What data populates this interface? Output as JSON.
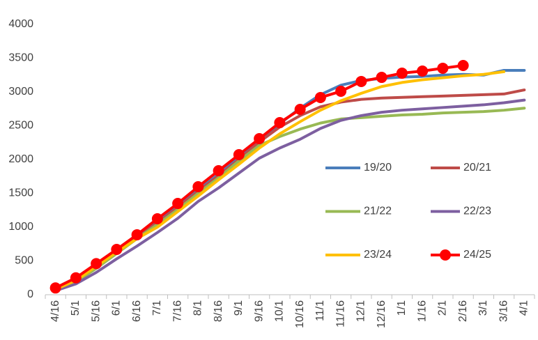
{
  "chart_data": {
    "type": "line",
    "categories": [
      "4/16",
      "5/1",
      "5/16",
      "6/1",
      "6/16",
      "7/1",
      "7/16",
      "8/1",
      "8/16",
      "9/1",
      "9/16",
      "10/1",
      "10/16",
      "11/1",
      "11/16",
      "12/1",
      "12/16",
      "1/1",
      "1/16",
      "2/1",
      "2/16",
      "3/1",
      "3/16",
      "4/1"
    ],
    "series": [
      {
        "name": "19/20",
        "color": "#4a7ebb",
        "values": [
          80,
          220,
          420,
          640,
          870,
          1080,
          1300,
          1550,
          1780,
          2030,
          2290,
          2530,
          2760,
          2960,
          3100,
          3170,
          3200,
          3220,
          3230,
          3250,
          3260,
          3250,
          3320,
          3320
        ]
      },
      {
        "name": "20/21",
        "color": "#be4b48",
        "values": [
          80,
          200,
          400,
          620,
          850,
          1060,
          1290,
          1530,
          1760,
          2000,
          2260,
          2480,
          2650,
          2780,
          2850,
          2890,
          2910,
          2920,
          2930,
          2940,
          2950,
          2960,
          2970,
          3030
        ]
      },
      {
        "name": "21/22",
        "color": "#98b954",
        "values": [
          80,
          190,
          390,
          610,
          830,
          1040,
          1260,
          1500,
          1730,
          1980,
          2210,
          2340,
          2450,
          2540,
          2600,
          2620,
          2640,
          2660,
          2670,
          2690,
          2700,
          2710,
          2730,
          2760
        ]
      },
      {
        "name": "22/23",
        "color": "#7d5fa0",
        "values": [
          60,
          160,
          330,
          530,
          720,
          920,
          1130,
          1380,
          1580,
          1800,
          2020,
          2170,
          2300,
          2460,
          2580,
          2650,
          2700,
          2730,
          2750,
          2770,
          2790,
          2810,
          2840,
          2880
        ]
      },
      {
        "name": "23/24",
        "color": "#ffc000",
        "values": [
          80,
          210,
          420,
          630,
          830,
          1000,
          1230,
          1460,
          1700,
          1930,
          2170,
          2380,
          2560,
          2730,
          2870,
          2980,
          3080,
          3140,
          3180,
          3210,
          3240,
          3260,
          3300,
          null
        ]
      },
      {
        "name": "24/25",
        "color": "#ff0000",
        "marker": true,
        "values": [
          100,
          250,
          460,
          670,
          887,
          1124,
          1350,
          1598,
          1835,
          2072,
          2309,
          2546,
          2742,
          2918,
          3010,
          3155,
          3216,
          3278,
          3309,
          3351,
          3392,
          null,
          null,
          null
        ]
      }
    ],
    "ylim": [
      0,
      4000
    ],
    "yticks": [
      0,
      500,
      1000,
      1500,
      2000,
      2500,
      3000,
      3500,
      4000
    ],
    "grid": false
  }
}
